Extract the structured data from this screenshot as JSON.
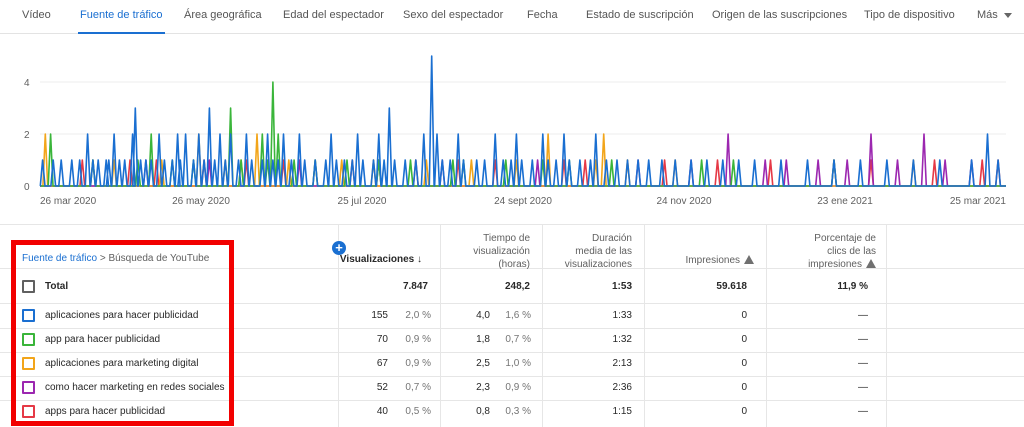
{
  "tabs": [
    {
      "label": "Vídeo",
      "active": false
    },
    {
      "label": "Fuente de tráfico",
      "active": true
    },
    {
      "label": "Área geográfica",
      "active": false
    },
    {
      "label": "Edad del espectador",
      "active": false
    },
    {
      "label": "Sexo del espectador",
      "active": false
    },
    {
      "label": "Fecha",
      "active": false
    },
    {
      "label": "Estado de suscripción",
      "active": false
    },
    {
      "label": "Origen de las suscripciones",
      "active": false
    },
    {
      "label": "Tipo de dispositivo",
      "active": false
    },
    {
      "label": "Más",
      "active": false
    }
  ],
  "chart_data": {
    "type": "line",
    "title": "",
    "xlabel": "",
    "ylabel": "",
    "ylim": [
      0,
      5
    ],
    "y_ticks": [
      "0",
      "2",
      "4"
    ],
    "x_ticks": [
      "26 mar 2020",
      "26 may 2020",
      "25 jul 2020",
      "24 sept 2020",
      "24 nov 2020",
      "23 ene 2021",
      "25 mar 2021"
    ],
    "days": 365,
    "series": [
      {
        "name": "aplicaciones para hacer publicidad",
        "color": "#1a6fd1",
        "points": [
          [
            1,
            1
          ],
          [
            5,
            1
          ],
          [
            8,
            1
          ],
          [
            12,
            1
          ],
          [
            15,
            1
          ],
          [
            18,
            2
          ],
          [
            20,
            1
          ],
          [
            22,
            1
          ],
          [
            25,
            1
          ],
          [
            26,
            1
          ],
          [
            28,
            2
          ],
          [
            30,
            1
          ],
          [
            32,
            1
          ],
          [
            35,
            2
          ],
          [
            36,
            3
          ],
          [
            38,
            1
          ],
          [
            40,
            1
          ],
          [
            42,
            1
          ],
          [
            45,
            2
          ],
          [
            47,
            1
          ],
          [
            50,
            1
          ],
          [
            52,
            2
          ],
          [
            53,
            1
          ],
          [
            55,
            2
          ],
          [
            58,
            1
          ],
          [
            60,
            2
          ],
          [
            62,
            1
          ],
          [
            64,
            3
          ],
          [
            66,
            1
          ],
          [
            68,
            2
          ],
          [
            70,
            1
          ],
          [
            72,
            2
          ],
          [
            75,
            1
          ],
          [
            78,
            2
          ],
          [
            80,
            1
          ],
          [
            84,
            1
          ],
          [
            86,
            2
          ],
          [
            88,
            1
          ],
          [
            90,
            1
          ],
          [
            92,
            2
          ],
          [
            95,
            1
          ],
          [
            98,
            2
          ],
          [
            100,
            1
          ],
          [
            104,
            1
          ],
          [
            108,
            1
          ],
          [
            110,
            2
          ],
          [
            112,
            1
          ],
          [
            115,
            1
          ],
          [
            118,
            1
          ],
          [
            120,
            2
          ],
          [
            122,
            1
          ],
          [
            126,
            1
          ],
          [
            128,
            2
          ],
          [
            130,
            1
          ],
          [
            132,
            3
          ],
          [
            134,
            1
          ],
          [
            138,
            1
          ],
          [
            142,
            1
          ],
          [
            145,
            2
          ],
          [
            148,
            5
          ],
          [
            150,
            2
          ],
          [
            152,
            1
          ],
          [
            155,
            1
          ],
          [
            158,
            2
          ],
          [
            160,
            1
          ],
          [
            165,
            1
          ],
          [
            168,
            1
          ],
          [
            172,
            2
          ],
          [
            175,
            1
          ],
          [
            178,
            1
          ],
          [
            180,
            2
          ],
          [
            182,
            1
          ],
          [
            186,
            1
          ],
          [
            190,
            2
          ],
          [
            192,
            1
          ],
          [
            195,
            1
          ],
          [
            198,
            2
          ],
          [
            200,
            1
          ],
          [
            204,
            1
          ],
          [
            208,
            1
          ],
          [
            210,
            2
          ],
          [
            214,
            1
          ],
          [
            218,
            1
          ],
          [
            222,
            1
          ],
          [
            226,
            1
          ],
          [
            230,
            1
          ],
          [
            235,
            1
          ],
          [
            240,
            1
          ],
          [
            246,
            1
          ],
          [
            252,
            1
          ],
          [
            258,
            1
          ],
          [
            264,
            1
          ],
          [
            270,
            1
          ],
          [
            280,
            1
          ],
          [
            290,
            1
          ],
          [
            300,
            1
          ],
          [
            310,
            1
          ],
          [
            320,
            1
          ],
          [
            330,
            1
          ],
          [
            340,
            1
          ],
          [
            352,
            1
          ],
          [
            358,
            2
          ],
          [
            362,
            1
          ]
        ]
      },
      {
        "name": "app para hacer publicidad",
        "color": "#3ab53a",
        "points": [
          [
            4,
            2
          ],
          [
            20,
            1
          ],
          [
            37,
            1
          ],
          [
            42,
            2
          ],
          [
            50,
            1
          ],
          [
            58,
            1
          ],
          [
            72,
            3
          ],
          [
            76,
            1
          ],
          [
            84,
            2
          ],
          [
            86,
            1
          ],
          [
            88,
            4
          ],
          [
            90,
            2
          ],
          [
            96,
            1
          ],
          [
            104,
            1
          ],
          [
            116,
            1
          ],
          [
            128,
            1
          ],
          [
            140,
            1
          ],
          [
            156,
            1
          ],
          [
            160,
            1
          ],
          [
            176,
            1
          ],
          [
            190,
            1
          ],
          [
            200,
            1
          ],
          [
            216,
            1
          ],
          [
            250,
            1
          ],
          [
            262,
            1
          ],
          [
            300,
            1
          ]
        ]
      },
      {
        "name": "aplicaciones para marketing digital",
        "color": "#f2a51a",
        "points": [
          [
            2,
            2
          ],
          [
            20,
            1
          ],
          [
            28,
            1
          ],
          [
            46,
            1
          ],
          [
            60,
            2
          ],
          [
            70,
            1
          ],
          [
            76,
            1
          ],
          [
            82,
            2
          ],
          [
            94,
            1
          ],
          [
            104,
            1
          ],
          [
            114,
            1
          ],
          [
            126,
            1
          ],
          [
            146,
            1
          ],
          [
            163,
            1
          ],
          [
            180,
            1
          ],
          [
            192,
            2
          ],
          [
            210,
            1
          ],
          [
            213,
            2
          ],
          [
            222,
            1
          ],
          [
            240,
            1
          ],
          [
            330,
            1
          ]
        ]
      },
      {
        "name": "como hacer marketing en redes sociales",
        "color": "#9c27b0",
        "points": [
          [
            40,
            1
          ],
          [
            64,
            1
          ],
          [
            98,
            1
          ],
          [
            128,
            1
          ],
          [
            152,
            1
          ],
          [
            188,
            1
          ],
          [
            226,
            1
          ],
          [
            246,
            1
          ],
          [
            260,
            2
          ],
          [
            274,
            1
          ],
          [
            282,
            1
          ],
          [
            294,
            1
          ],
          [
            305,
            1
          ],
          [
            314,
            2
          ],
          [
            324,
            1
          ],
          [
            334,
            2
          ],
          [
            342,
            1
          ],
          [
            352,
            1
          ]
        ]
      },
      {
        "name": "apps para hacer publicidad",
        "color": "#e53946",
        "points": [
          [
            16,
            1
          ],
          [
            34,
            1
          ],
          [
            44,
            1
          ],
          [
            62,
            1
          ],
          [
            78,
            1
          ],
          [
            92,
            1
          ],
          [
            118,
            1
          ],
          [
            142,
            1
          ],
          [
            158,
            1
          ],
          [
            172,
            1
          ],
          [
            198,
            1
          ],
          [
            206,
            1
          ],
          [
            236,
            1
          ],
          [
            256,
            1
          ],
          [
            276,
            1
          ],
          [
            300,
            1
          ],
          [
            314,
            1
          ],
          [
            338,
            1
          ],
          [
            356,
            1
          ],
          [
            362,
            1
          ]
        ]
      }
    ]
  },
  "table": {
    "breadcrumb_link": "Fuente de tráfico",
    "breadcrumb_sep": ">",
    "breadcrumb_current": "Búsqueda de YouTube",
    "columns": {
      "views": "Visualizaciones",
      "watch_time": [
        "Tiempo de",
        "visualización",
        "(horas)"
      ],
      "avg_duration": [
        "Duración",
        "media de las",
        "visualizaciones"
      ],
      "impressions": "Impresiones",
      "ctr": [
        "Porcentaje de",
        "clics de las",
        "impresiones"
      ]
    },
    "sort_arrow": "↓",
    "plus": "+",
    "total": {
      "label": "Total",
      "views": "7.847",
      "watch": "248,2",
      "avg": "1:53",
      "impressions": "59.618",
      "ctr": "11,9 %"
    },
    "rows": [
      {
        "label": "aplicaciones para hacer publicidad",
        "color": "#1a6fd1",
        "views": "155",
        "views_pct": "2,0 %",
        "watch": "4,0",
        "watch_pct": "1,6 %",
        "avg": "1:33",
        "impressions": "0",
        "ctr": "—"
      },
      {
        "label": "app para hacer publicidad",
        "color": "#3ab53a",
        "views": "70",
        "views_pct": "0,9 %",
        "watch": "1,8",
        "watch_pct": "0,7 %",
        "avg": "1:32",
        "impressions": "0",
        "ctr": "—"
      },
      {
        "label": "aplicaciones para marketing digital",
        "color": "#f2a51a",
        "views": "67",
        "views_pct": "0,9 %",
        "watch": "2,5",
        "watch_pct": "1,0 %",
        "avg": "2:13",
        "impressions": "0",
        "ctr": "—"
      },
      {
        "label": "como hacer marketing en redes sociales",
        "color": "#9c27b0",
        "views": "52",
        "views_pct": "0,7 %",
        "watch": "2,3",
        "watch_pct": "0,9 %",
        "avg": "2:36",
        "impressions": "0",
        "ctr": "—"
      },
      {
        "label": "apps para hacer publicidad",
        "color": "#e53946",
        "views": "40",
        "views_pct": "0,5 %",
        "watch": "0,8",
        "watch_pct": "0,3 %",
        "avg": "1:15",
        "impressions": "0",
        "ctr": "—"
      }
    ]
  }
}
